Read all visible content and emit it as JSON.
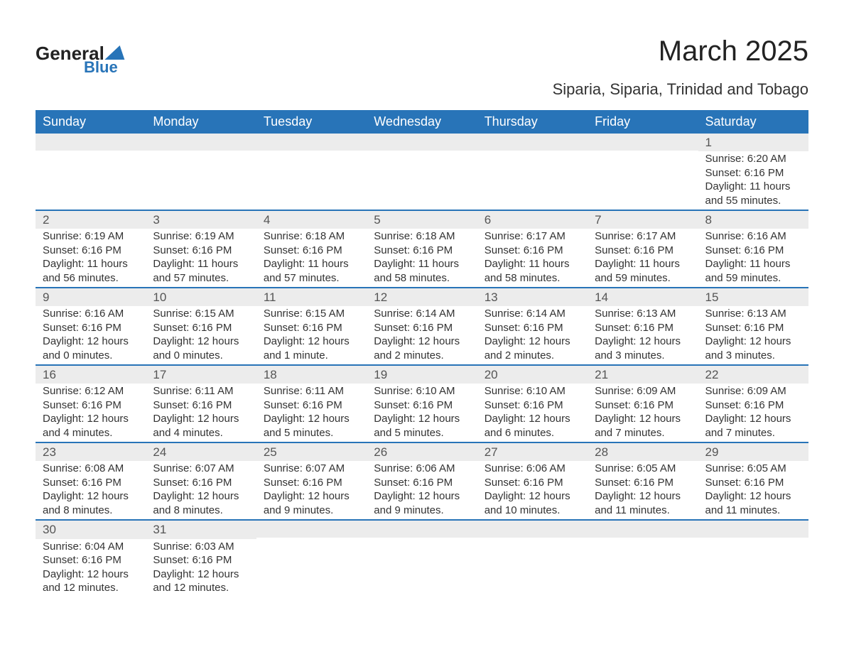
{
  "logo": {
    "main": "General",
    "sub": "Blue"
  },
  "title": "March 2025",
  "subtitle": "Siparia, Siparia, Trinidad and Tobago",
  "colors": {
    "header_bg": "#2874b8",
    "header_text": "#ffffff",
    "daynum_bg": "#ececec",
    "row_divider": "#2874b8",
    "body_text": "#333333",
    "page_bg": "#ffffff"
  },
  "weekdays": [
    "Sunday",
    "Monday",
    "Tuesday",
    "Wednesday",
    "Thursday",
    "Friday",
    "Saturday"
  ],
  "grid": [
    [
      null,
      null,
      null,
      null,
      null,
      null,
      {
        "n": "1",
        "sr": "Sunrise: 6:20 AM",
        "ss": "Sunset: 6:16 PM",
        "d1": "Daylight: 11 hours",
        "d2": "and 55 minutes."
      }
    ],
    [
      {
        "n": "2",
        "sr": "Sunrise: 6:19 AM",
        "ss": "Sunset: 6:16 PM",
        "d1": "Daylight: 11 hours",
        "d2": "and 56 minutes."
      },
      {
        "n": "3",
        "sr": "Sunrise: 6:19 AM",
        "ss": "Sunset: 6:16 PM",
        "d1": "Daylight: 11 hours",
        "d2": "and 57 minutes."
      },
      {
        "n": "4",
        "sr": "Sunrise: 6:18 AM",
        "ss": "Sunset: 6:16 PM",
        "d1": "Daylight: 11 hours",
        "d2": "and 57 minutes."
      },
      {
        "n": "5",
        "sr": "Sunrise: 6:18 AM",
        "ss": "Sunset: 6:16 PM",
        "d1": "Daylight: 11 hours",
        "d2": "and 58 minutes."
      },
      {
        "n": "6",
        "sr": "Sunrise: 6:17 AM",
        "ss": "Sunset: 6:16 PM",
        "d1": "Daylight: 11 hours",
        "d2": "and 58 minutes."
      },
      {
        "n": "7",
        "sr": "Sunrise: 6:17 AM",
        "ss": "Sunset: 6:16 PM",
        "d1": "Daylight: 11 hours",
        "d2": "and 59 minutes."
      },
      {
        "n": "8",
        "sr": "Sunrise: 6:16 AM",
        "ss": "Sunset: 6:16 PM",
        "d1": "Daylight: 11 hours",
        "d2": "and 59 minutes."
      }
    ],
    [
      {
        "n": "9",
        "sr": "Sunrise: 6:16 AM",
        "ss": "Sunset: 6:16 PM",
        "d1": "Daylight: 12 hours",
        "d2": "and 0 minutes."
      },
      {
        "n": "10",
        "sr": "Sunrise: 6:15 AM",
        "ss": "Sunset: 6:16 PM",
        "d1": "Daylight: 12 hours",
        "d2": "and 0 minutes."
      },
      {
        "n": "11",
        "sr": "Sunrise: 6:15 AM",
        "ss": "Sunset: 6:16 PM",
        "d1": "Daylight: 12 hours",
        "d2": "and 1 minute."
      },
      {
        "n": "12",
        "sr": "Sunrise: 6:14 AM",
        "ss": "Sunset: 6:16 PM",
        "d1": "Daylight: 12 hours",
        "d2": "and 2 minutes."
      },
      {
        "n": "13",
        "sr": "Sunrise: 6:14 AM",
        "ss": "Sunset: 6:16 PM",
        "d1": "Daylight: 12 hours",
        "d2": "and 2 minutes."
      },
      {
        "n": "14",
        "sr": "Sunrise: 6:13 AM",
        "ss": "Sunset: 6:16 PM",
        "d1": "Daylight: 12 hours",
        "d2": "and 3 minutes."
      },
      {
        "n": "15",
        "sr": "Sunrise: 6:13 AM",
        "ss": "Sunset: 6:16 PM",
        "d1": "Daylight: 12 hours",
        "d2": "and 3 minutes."
      }
    ],
    [
      {
        "n": "16",
        "sr": "Sunrise: 6:12 AM",
        "ss": "Sunset: 6:16 PM",
        "d1": "Daylight: 12 hours",
        "d2": "and 4 minutes."
      },
      {
        "n": "17",
        "sr": "Sunrise: 6:11 AM",
        "ss": "Sunset: 6:16 PM",
        "d1": "Daylight: 12 hours",
        "d2": "and 4 minutes."
      },
      {
        "n": "18",
        "sr": "Sunrise: 6:11 AM",
        "ss": "Sunset: 6:16 PM",
        "d1": "Daylight: 12 hours",
        "d2": "and 5 minutes."
      },
      {
        "n": "19",
        "sr": "Sunrise: 6:10 AM",
        "ss": "Sunset: 6:16 PM",
        "d1": "Daylight: 12 hours",
        "d2": "and 5 minutes."
      },
      {
        "n": "20",
        "sr": "Sunrise: 6:10 AM",
        "ss": "Sunset: 6:16 PM",
        "d1": "Daylight: 12 hours",
        "d2": "and 6 minutes."
      },
      {
        "n": "21",
        "sr": "Sunrise: 6:09 AM",
        "ss": "Sunset: 6:16 PM",
        "d1": "Daylight: 12 hours",
        "d2": "and 7 minutes."
      },
      {
        "n": "22",
        "sr": "Sunrise: 6:09 AM",
        "ss": "Sunset: 6:16 PM",
        "d1": "Daylight: 12 hours",
        "d2": "and 7 minutes."
      }
    ],
    [
      {
        "n": "23",
        "sr": "Sunrise: 6:08 AM",
        "ss": "Sunset: 6:16 PM",
        "d1": "Daylight: 12 hours",
        "d2": "and 8 minutes."
      },
      {
        "n": "24",
        "sr": "Sunrise: 6:07 AM",
        "ss": "Sunset: 6:16 PM",
        "d1": "Daylight: 12 hours",
        "d2": "and 8 minutes."
      },
      {
        "n": "25",
        "sr": "Sunrise: 6:07 AM",
        "ss": "Sunset: 6:16 PM",
        "d1": "Daylight: 12 hours",
        "d2": "and 9 minutes."
      },
      {
        "n": "26",
        "sr": "Sunrise: 6:06 AM",
        "ss": "Sunset: 6:16 PM",
        "d1": "Daylight: 12 hours",
        "d2": "and 9 minutes."
      },
      {
        "n": "27",
        "sr": "Sunrise: 6:06 AM",
        "ss": "Sunset: 6:16 PM",
        "d1": "Daylight: 12 hours",
        "d2": "and 10 minutes."
      },
      {
        "n": "28",
        "sr": "Sunrise: 6:05 AM",
        "ss": "Sunset: 6:16 PM",
        "d1": "Daylight: 12 hours",
        "d2": "and 11 minutes."
      },
      {
        "n": "29",
        "sr": "Sunrise: 6:05 AM",
        "ss": "Sunset: 6:16 PM",
        "d1": "Daylight: 12 hours",
        "d2": "and 11 minutes."
      }
    ],
    [
      {
        "n": "30",
        "sr": "Sunrise: 6:04 AM",
        "ss": "Sunset: 6:16 PM",
        "d1": "Daylight: 12 hours",
        "d2": "and 12 minutes."
      },
      {
        "n": "31",
        "sr": "Sunrise: 6:03 AM",
        "ss": "Sunset: 6:16 PM",
        "d1": "Daylight: 12 hours",
        "d2": "and 12 minutes."
      },
      null,
      null,
      null,
      null,
      null
    ]
  ]
}
